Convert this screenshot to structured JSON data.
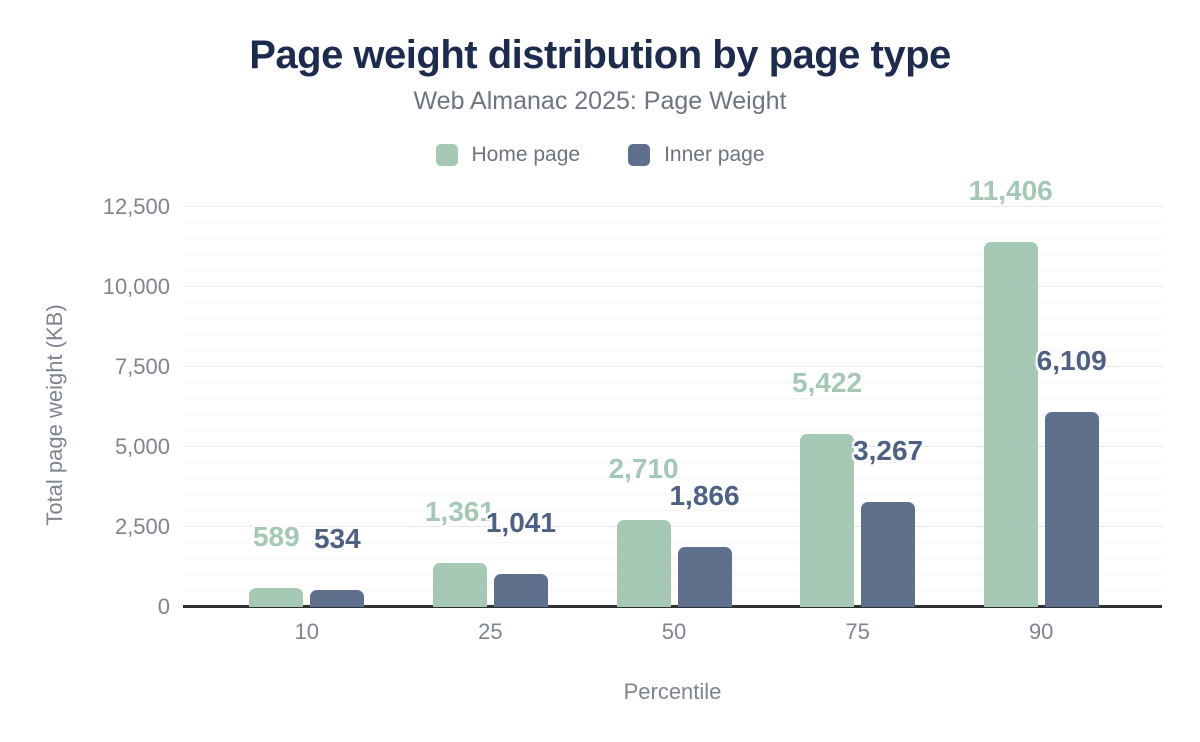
{
  "header": {
    "title": "Page weight distribution by page type",
    "subtitle": "Web Almanac 2025: Page Weight"
  },
  "chart_data": {
    "type": "bar",
    "title": "Page weight distribution by page type",
    "subtitle": "Web Almanac 2025: Page Weight",
    "xlabel": "Percentile",
    "ylabel": "Total page weight (KB)",
    "categories": [
      "10",
      "25",
      "50",
      "75",
      "90"
    ],
    "series": [
      {
        "name": "Home page",
        "values": [
          589,
          1361,
          2710,
          5422,
          11406
        ],
        "labels": [
          "589",
          "1,361",
          "2,710",
          "5,422",
          "11,406"
        ],
        "color": "#a6c9b6",
        "label_color": "#a4c8b5"
      },
      {
        "name": "Inner page",
        "values": [
          534,
          1041,
          1866,
          3267,
          6109
        ],
        "labels": [
          "534",
          "1,041",
          "1,866",
          "3,267",
          "6,109"
        ],
        "color": "#5f708c",
        "label_color": "#4e6083"
      }
    ],
    "ylim": [
      0,
      12500
    ],
    "y_major_ticks": [
      0,
      2500,
      5000,
      7500,
      10000,
      12500
    ],
    "y_tick_labels": [
      "0",
      "2,500",
      "5,000",
      "7,500",
      "10,000",
      "12,500"
    ],
    "y_minor_step": 500,
    "legend_position": "top",
    "grid": "horizontal-only"
  },
  "theme": {
    "background": "#ffffff",
    "title_color": "#1d2c4e",
    "subtitle_color": "#6e7580",
    "legend_text_color": "#6d747f",
    "axis_text_color": "#7e858f",
    "axis_line_color": "#2e3034",
    "gridline_major_color": "#e4e6e9",
    "gridline_minor_color": "#f3f4f6"
  }
}
